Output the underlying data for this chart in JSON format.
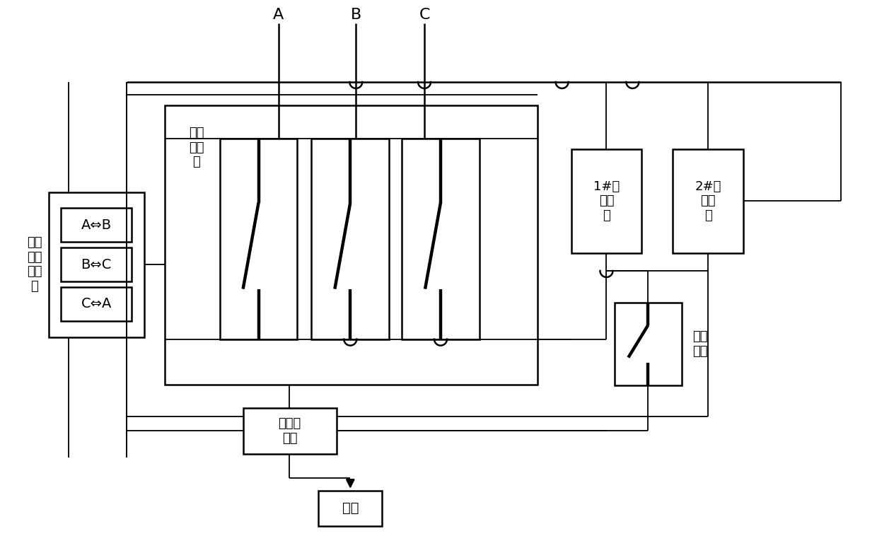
{
  "bg_color": "#ffffff",
  "phase_labels": [
    "A",
    "B",
    "C"
  ],
  "controller_label": "调相\n选择\n控制\n器",
  "switch_controller_label": "开关\n控制\n器",
  "circuit1_label": "1#转\n换电\n路",
  "circuit2_label": "2#转\n换电\n路",
  "zero_detector_label": "过零检\n测器",
  "load_label": "负荷",
  "aux_switch_label": "辅助\n开关",
  "selector_buttons": [
    "A⇔B",
    "B⇔C",
    "C⇔A"
  ],
  "font_size": 13,
  "font_size_phase": 16,
  "font_size_btn": 14
}
